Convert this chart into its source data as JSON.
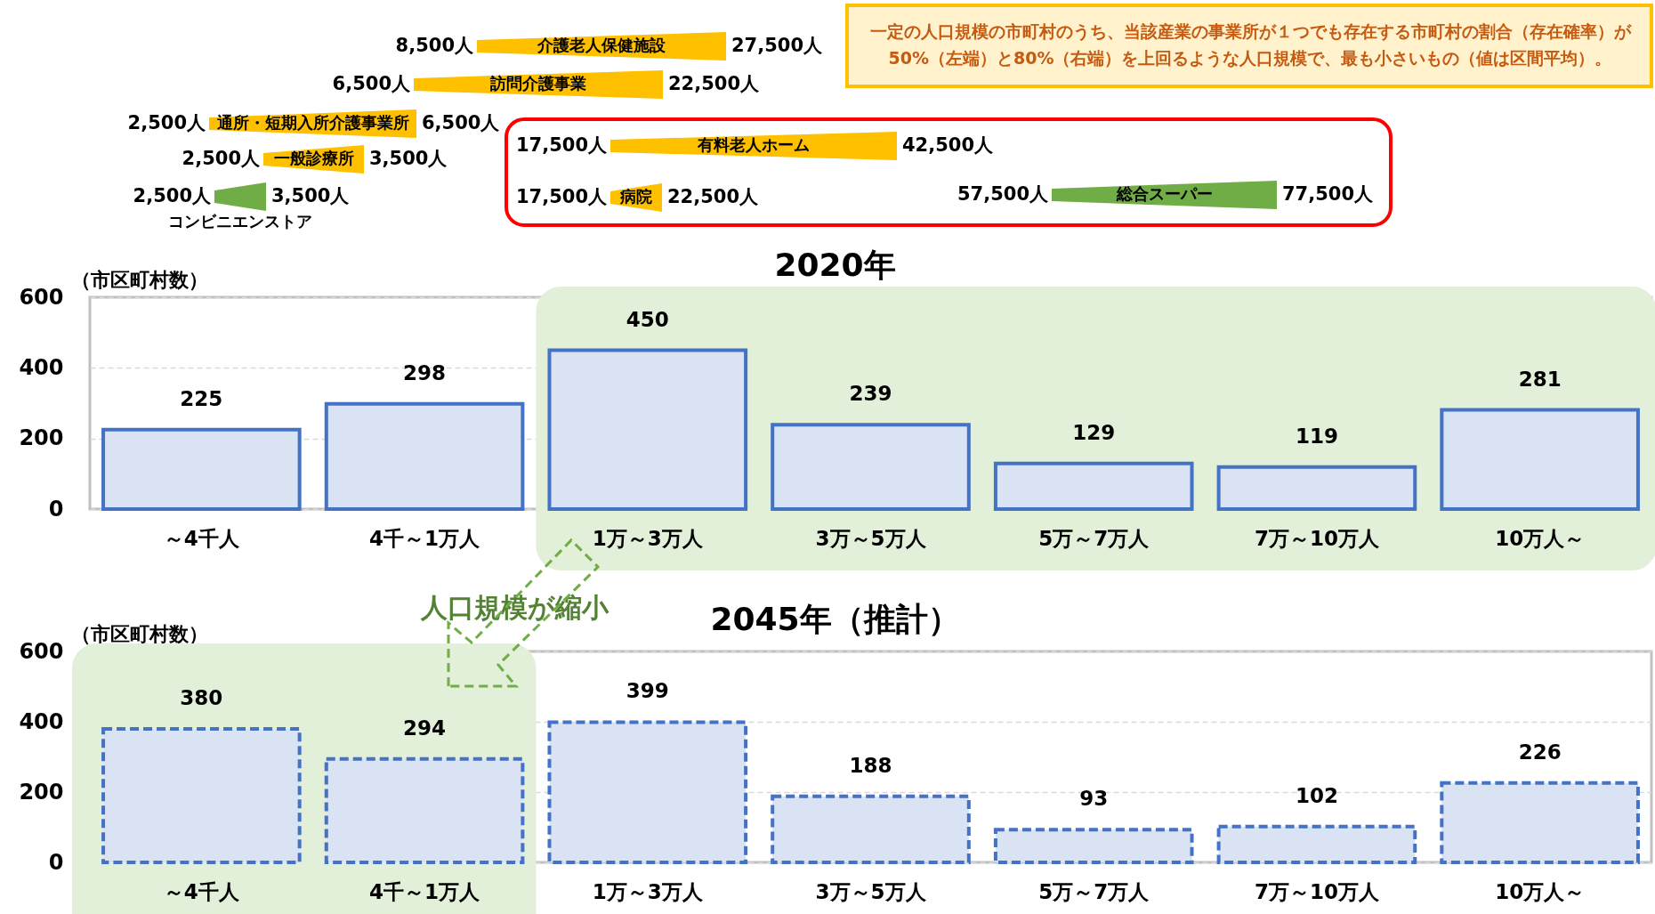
{
  "chart_data": [
    {
      "type": "other",
      "categories": [
        "介護老人保健施設",
        "訪問介護事業",
        "通所・短期入所介護事業所",
        "一般診療所",
        "コンビニエンストア",
        "有料老人ホーム",
        "病院",
        "総合スーパー"
      ],
      "colors": [
        "#ffc000",
        "#ffc000",
        "#ffc000",
        "#ffc000",
        "#70ad47",
        "#ffc000",
        "#ffc000",
        "#70ad47"
      ],
      "annotations": [
        "一定の人口規模の市町村のうち、当該産業の事業所が１つでも存在する市町村の割合（存在確率）が\n50%（左端）と80%（右端）を上回るような人口規模で、最も小さいもの（値は区間平均）。",
        "8,500人",
        "27,500人",
        "6,500人",
        "22,500人",
        "2,500人",
        "6,500人",
        "2,500人",
        "3,500人",
        "2,500人",
        "3,500人",
        "17,500人",
        "42,500人",
        "17,500人",
        "22,500人",
        "57,500人",
        "77,500人"
      ]
    },
    {
      "type": "bar",
      "title": "2020年",
      "ylabel": "（市区町村数）",
      "categories": [
        "～4千人",
        "4千～1万人",
        "1万～3万人",
        "3万～5万人",
        "5万～7万人",
        "7万～10万人",
        "10万人～"
      ],
      "series": [
        {
          "color": "#dae3f3",
          "values": [
            225,
            298,
            450,
            239,
            129,
            119,
            281
          ]
        }
      ],
      "ylim": [
        0,
        600
      ],
      "yticks": [
        0,
        200,
        400,
        600
      ],
      "grid": "y",
      "data_labels": true,
      "line_style": "solid",
      "bands": [
        {
          "axis": "x",
          "from": "1万～3万人",
          "to": "10万人～",
          "color": "#e2efd9"
        }
      ]
    },
    {
      "type": "bar",
      "title": "2045年（推計）",
      "ylabel": "（市区町村数）",
      "categories": [
        "～4千人",
        "4千～1万人",
        "1万～3万人",
        "3万～5万人",
        "5万～7万人",
        "7万～10万人",
        "10万人～"
      ],
      "series": [
        {
          "color": "#dae3f3",
          "values": [
            380,
            294,
            399,
            188,
            93,
            102,
            226
          ]
        }
      ],
      "ylim": [
        0,
        600
      ],
      "yticks": [
        0,
        200,
        400,
        600
      ],
      "grid": "y",
      "data_labels": true,
      "line_style": "dashed",
      "bands": [
        {
          "axis": "x",
          "from": "～4千人",
          "to": "4千～1万人",
          "color": "#e2efd9"
        }
      ],
      "annotations": [
        "人口規模が縮小"
      ]
    }
  ]
}
